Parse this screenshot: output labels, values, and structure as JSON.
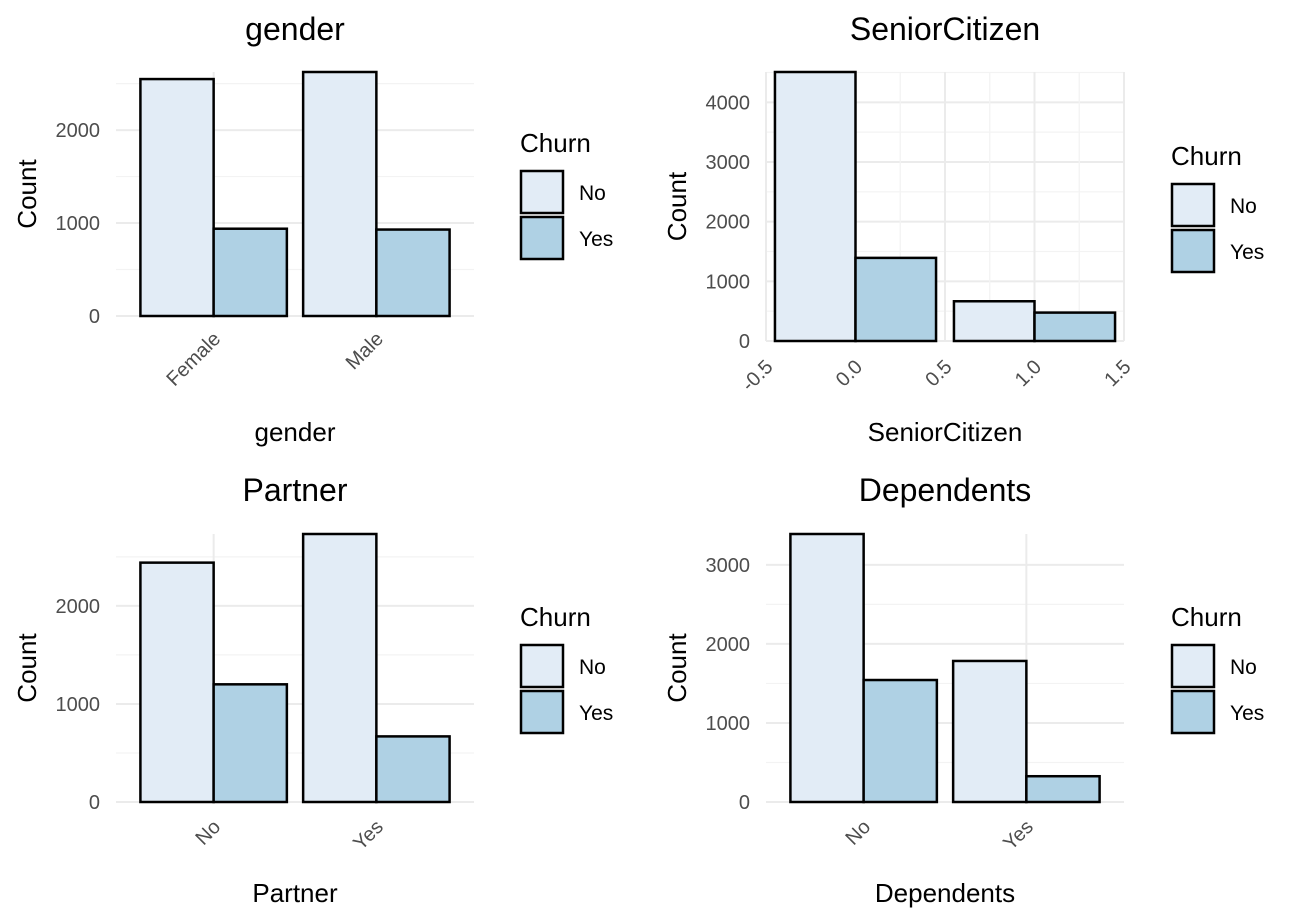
{
  "colors": {
    "No": "#e2ecf6",
    "Yes": "#afd1e4"
  },
  "chart_data": [
    {
      "type": "bar",
      "title": "gender",
      "xlabel": "gender",
      "ylabel": "Count",
      "categories": [
        "Female",
        "Male"
      ],
      "series": [
        {
          "name": "No",
          "values": [
            2549,
            2625
          ]
        },
        {
          "name": "Yes",
          "values": [
            939,
            930
          ]
        }
      ],
      "ylim": [
        0,
        2625
      ],
      "yticks": [
        0,
        1000,
        2000
      ],
      "ytick_labels": [
        "0",
        "1000",
        "2000"
      ],
      "grid": true,
      "legend": {
        "title": "Churn",
        "entries": [
          "No",
          "Yes"
        ],
        "position": "right"
      }
    },
    {
      "type": "bar",
      "title": "SeniorCitizen",
      "xlabel": "SeniorCitizen",
      "ylabel": "Count",
      "x": [
        0,
        1
      ],
      "dodge_width": 0.9,
      "series": [
        {
          "name": "No",
          "values": [
            4508,
            666
          ]
        },
        {
          "name": "Yes",
          "values": [
            1393,
            476
          ]
        }
      ],
      "xlim": [
        -0.5,
        1.5
      ],
      "xticks": [
        -0.5,
        0.0,
        0.5,
        1.0,
        1.5
      ],
      "xtick_labels": [
        "-0.5",
        "0.0",
        "0.5",
        "1.0",
        "1.5"
      ],
      "ylim": [
        0,
        4508
      ],
      "yticks": [
        0,
        1000,
        2000,
        3000,
        4000
      ],
      "ytick_labels": [
        "0",
        "1000",
        "2000",
        "3000",
        "4000"
      ],
      "grid": true,
      "legend": {
        "title": "Churn",
        "entries": [
          "No",
          "Yes"
        ],
        "position": "right"
      }
    },
    {
      "type": "bar",
      "title": "Partner",
      "xlabel": "Partner",
      "ylabel": "Count",
      "categories": [
        "No",
        "Yes"
      ],
      "series": [
        {
          "name": "No",
          "values": [
            2441,
            2733
          ]
        },
        {
          "name": "Yes",
          "values": [
            1200,
            669
          ]
        }
      ],
      "ylim": [
        0,
        2733
      ],
      "yticks": [
        0,
        1000,
        2000
      ],
      "ytick_labels": [
        "0",
        "1000",
        "2000"
      ],
      "grid": true,
      "legend": {
        "title": "Churn",
        "entries": [
          "No",
          "Yes"
        ],
        "position": "right"
      }
    },
    {
      "type": "bar",
      "title": "Dependents",
      "xlabel": "Dependents",
      "ylabel": "Count",
      "categories": [
        "No",
        "Yes"
      ],
      "series": [
        {
          "name": "No",
          "values": [
            3390,
            1784
          ]
        },
        {
          "name": "Yes",
          "values": [
            1543,
            326
          ]
        }
      ],
      "ylim": [
        0,
        3390
      ],
      "yticks": [
        0,
        1000,
        2000,
        3000
      ],
      "ytick_labels": [
        "0",
        "1000",
        "2000",
        "3000"
      ],
      "grid": true,
      "legend": {
        "title": "Churn",
        "entries": [
          "No",
          "Yes"
        ],
        "position": "right"
      }
    }
  ]
}
